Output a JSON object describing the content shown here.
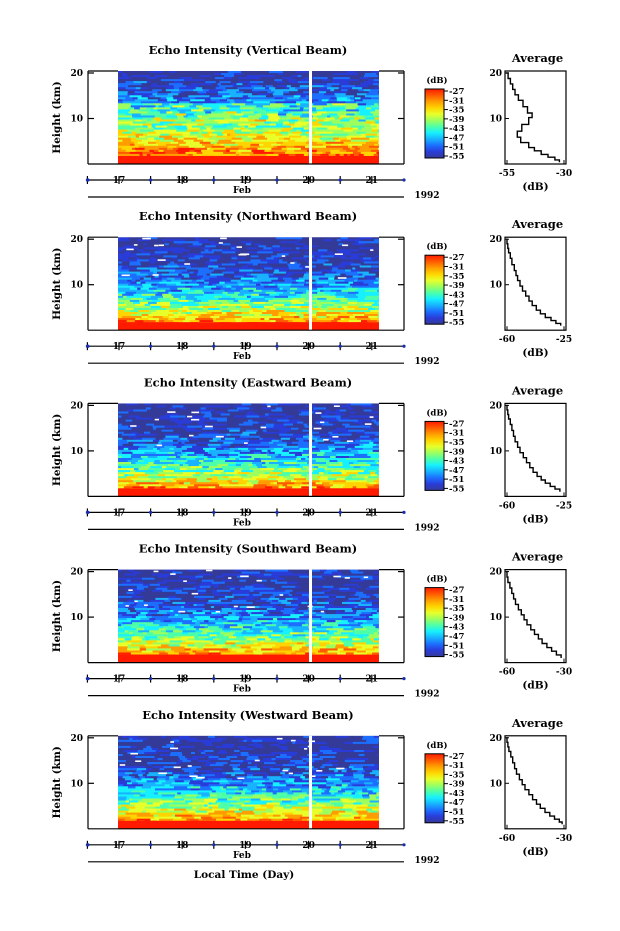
{
  "figure": {
    "xlabel": "Local Time (Day)",
    "ylabel": "Height (km)",
    "month_label": "Feb",
    "year_label": "1992",
    "colorbar_unit": "(dB)",
    "colorbar_ticks": [
      "-27",
      "-31",
      "-35",
      "-39",
      "-43",
      "-47",
      "-51",
      "-55"
    ],
    "colorbar_colors": [
      "#ff1a00",
      "#ff5a00",
      "#ff9d00",
      "#ffd400",
      "#e8ff2a",
      "#9dff5e",
      "#4dffa8",
      "#16f0ff",
      "#18b2ff",
      "#1c6eff",
      "#2a3cd8",
      "#343a98"
    ]
  },
  "chart_data": [
    {
      "type": "heatmap",
      "title": "Echo Intensity (Vertical Beam)",
      "x_ticks": [
        "17",
        "18",
        "19",
        "20",
        "21"
      ],
      "y_ticks": [
        "20",
        "10"
      ],
      "ylim": [
        0,
        20
      ],
      "clim": [
        -57,
        -25
      ],
      "colorbar_label": "(dB)"
    },
    {
      "type": "line",
      "title": "Average",
      "xlabel": "(dB)",
      "x_ticks": [
        "-55",
        "-30"
      ],
      "xlim": [
        -55,
        -30
      ],
      "y_ticks": [
        "20",
        "10"
      ],
      "ylim": [
        0,
        20
      ],
      "x": [
        -55.5,
        -54.5,
        -53.5,
        -52.5,
        -51.5,
        -50,
        -48,
        -46,
        -44,
        -45.5,
        -48.5,
        -50.5,
        -49,
        -45.5,
        -43,
        -40,
        -37,
        -34,
        -32
      ],
      "y": [
        20,
        18.8,
        17.6,
        16.4,
        15.2,
        14,
        12.6,
        11.2,
        10.2,
        8.7,
        7.2,
        5.9,
        4.7,
        3.6,
        2.9,
        2.1,
        1.5,
        0.9,
        0.4
      ]
    },
    {
      "type": "heatmap",
      "title": "Echo Intensity (Northward Beam)",
      "x_ticks": [
        "17",
        "18",
        "19",
        "20",
        "21"
      ],
      "y_ticks": [
        "20",
        "10"
      ],
      "ylim": [
        0,
        20
      ],
      "clim": [
        -57,
        -25
      ],
      "colorbar_label": "(dB)"
    },
    {
      "type": "line",
      "title": "Average",
      "xlabel": "(dB)",
      "x_ticks": [
        "-60",
        "-25"
      ],
      "xlim": [
        -60,
        -25
      ],
      "y_ticks": [
        "20",
        "10"
      ],
      "ylim": [
        0,
        20
      ],
      "x": [
        -60.5,
        -60,
        -59.5,
        -59,
        -58,
        -57,
        -55.5,
        -54.5,
        -53.5,
        -52,
        -50.5,
        -48.5,
        -46.5,
        -44.5,
        -42,
        -39.5,
        -36.5,
        -33,
        -30,
        -27
      ],
      "y": [
        20,
        19,
        18,
        17,
        15.8,
        14.4,
        13.1,
        12,
        10.9,
        9.7,
        8.6,
        7.5,
        6.4,
        5.4,
        4.4,
        3.6,
        2.8,
        2.1,
        1.5,
        1
      ]
    },
    {
      "type": "heatmap",
      "title": "Echo Intensity (Eastward Beam)",
      "x_ticks": [
        "17",
        "18",
        "19",
        "20",
        "21"
      ],
      "y_ticks": [
        "20",
        "10"
      ],
      "ylim": [
        0,
        20
      ],
      "clim": [
        -57,
        -25
      ],
      "colorbar_label": "(dB)"
    },
    {
      "type": "line",
      "title": "Average",
      "xlabel": "(dB)",
      "x_ticks": [
        "-60",
        "-25"
      ],
      "xlim": [
        -60,
        -25
      ],
      "y_ticks": [
        "20",
        "10"
      ],
      "ylim": [
        0,
        20
      ],
      "x": [
        -60.5,
        -60,
        -59.5,
        -59,
        -58,
        -57,
        -56,
        -55,
        -53.5,
        -52,
        -50,
        -48,
        -46,
        -44,
        -41.5,
        -39,
        -36.5,
        -33.5,
        -30.5,
        -27.5
      ],
      "y": [
        20,
        19,
        18,
        17,
        15.8,
        14.5,
        13.2,
        12,
        10.8,
        9.6,
        8.5,
        7.4,
        6.3,
        5.3,
        4.4,
        3.6,
        2.9,
        2.2,
        1.6,
        1
      ]
    },
    {
      "type": "heatmap",
      "title": "Echo Intensity (Southward Beam)",
      "x_ticks": [
        "17",
        "18",
        "19",
        "20",
        "21"
      ],
      "y_ticks": [
        "20",
        "10"
      ],
      "ylim": [
        0,
        20
      ],
      "clim": [
        -57,
        -25
      ],
      "colorbar_label": "(dB)"
    },
    {
      "type": "line",
      "title": "Average",
      "xlabel": "(dB)",
      "x_ticks": [
        "-60",
        "-30"
      ],
      "xlim": [
        -60,
        -30
      ],
      "y_ticks": [
        "20",
        "10"
      ],
      "ylim": [
        0,
        20
      ],
      "x": [
        -60.5,
        -60,
        -59.5,
        -58.5,
        -57.5,
        -56.5,
        -55.5,
        -54,
        -52.5,
        -51,
        -49.5,
        -47.5,
        -45.5,
        -43.5,
        -41.5,
        -39,
        -36.5,
        -34,
        -31.5
      ],
      "y": [
        20,
        18.8,
        17.6,
        16.4,
        15.2,
        14,
        12.8,
        11.6,
        10.5,
        9.4,
        8.3,
        7.2,
        6.2,
        5.2,
        4.2,
        3.3,
        2.5,
        1.7,
        1
      ]
    },
    {
      "type": "heatmap",
      "title": "Echo Intensity (Westward Beam)",
      "x_ticks": [
        "17",
        "18",
        "19",
        "20",
        "21"
      ],
      "y_ticks": [
        "20",
        "10"
      ],
      "ylim": [
        0,
        20
      ],
      "clim": [
        -57,
        -25
      ],
      "colorbar_label": "(dB)"
    },
    {
      "type": "line",
      "title": "Average",
      "xlabel": "(dB)",
      "x_ticks": [
        "-60",
        "-30"
      ],
      "xlim": [
        -60,
        -30
      ],
      "y_ticks": [
        "20",
        "10"
      ],
      "ylim": [
        0,
        20
      ],
      "x": [
        -60.5,
        -60,
        -59.5,
        -59,
        -58,
        -57,
        -56,
        -55,
        -53.5,
        -52,
        -50.5,
        -48.5,
        -46.5,
        -44.5,
        -42.5,
        -40,
        -37.5,
        -35,
        -32.5,
        -31
      ],
      "y": [
        20,
        19,
        18,
        17,
        15.8,
        14.5,
        13.2,
        12,
        10.8,
        9.7,
        8.6,
        7.5,
        6.4,
        5.4,
        4.5,
        3.6,
        2.8,
        2.1,
        1.5,
        1
      ]
    }
  ]
}
